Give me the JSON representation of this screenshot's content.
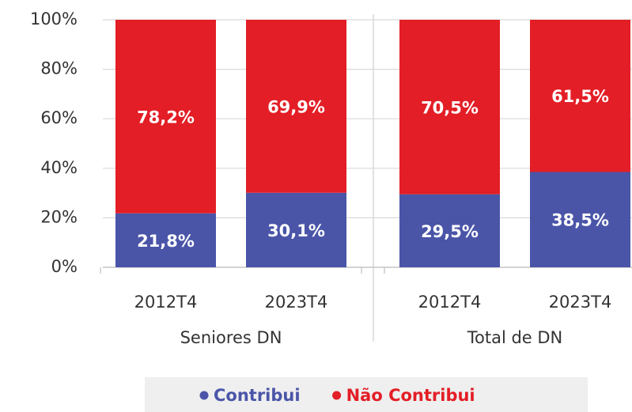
{
  "chart_data": {
    "type": "stacked-bar",
    "groups": [
      {
        "name": "Seniores DN",
        "categories": [
          "2012T4",
          "2023T4"
        ]
      },
      {
        "name": "Total de DN",
        "categories": [
          "2012T4",
          "2023T4"
        ]
      }
    ],
    "series": [
      {
        "name": "Contribui",
        "color": "#4a55a8",
        "values": [
          21.8,
          30.1,
          29.5,
          38.5
        ],
        "value_labels": [
          "21,8%",
          "30,1%",
          "29,5%",
          "38,5%"
        ]
      },
      {
        "name": "Não Contribui",
        "color": "#e31e26",
        "values": [
          78.2,
          69.9,
          70.5,
          61.5
        ],
        "value_labels": [
          "78,2%",
          "69,9%",
          "70,5%",
          "61,5%"
        ]
      }
    ],
    "ylim": [
      0,
      100
    ],
    "yticks": [
      {
        "value": 0,
        "label": "0%"
      },
      {
        "value": 20,
        "label": "20%"
      },
      {
        "value": 40,
        "label": "40%"
      },
      {
        "value": 60,
        "label": "60%"
      },
      {
        "value": 80,
        "label": "80%"
      },
      {
        "value": 100,
        "label": "100%"
      }
    ],
    "grid": true,
    "legend": "bottom"
  }
}
